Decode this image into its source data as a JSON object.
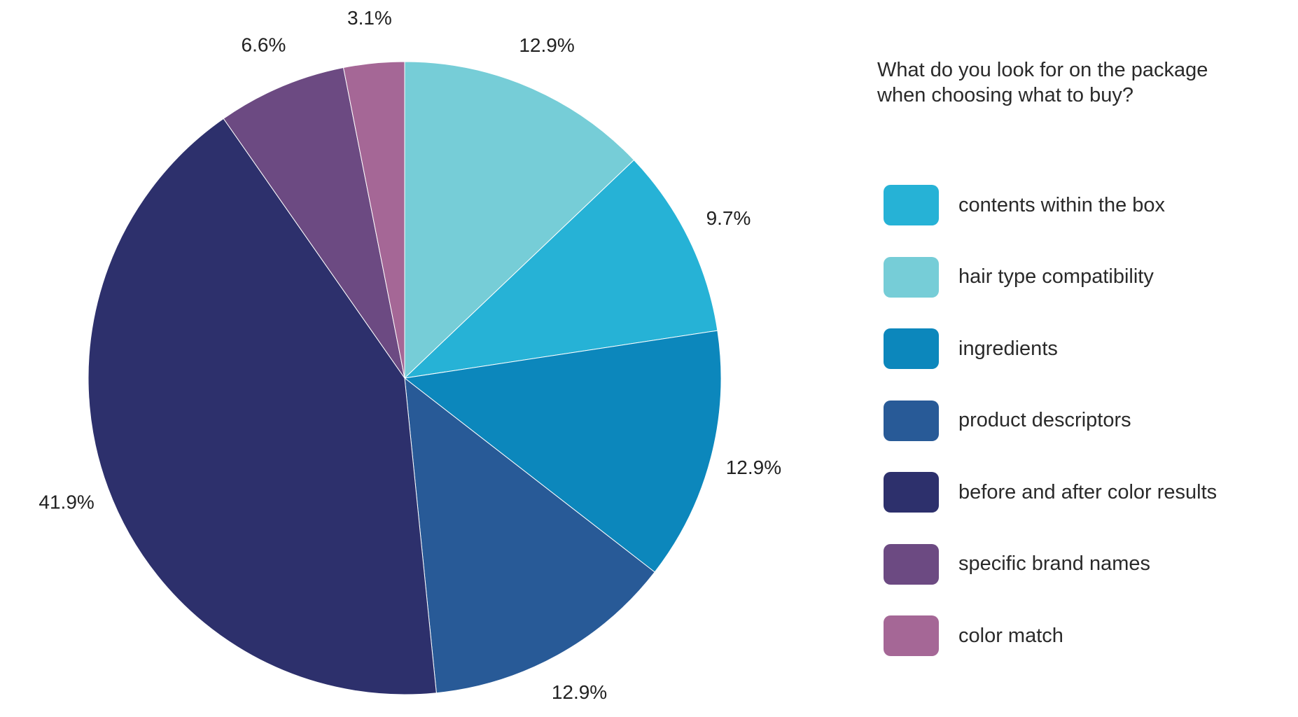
{
  "chart_data": {
    "type": "pie",
    "title": "What do you look for on the package when choosing what to buy?",
    "legend_position": "right",
    "slices": [
      {
        "label": "contents within the box",
        "value": 9.7,
        "display": "9.7%",
        "color": "#26B2D6"
      },
      {
        "label": "hair type compatibility",
        "value": 12.9,
        "display": "12.9%",
        "color": "#76CDD7"
      },
      {
        "label": "ingredients",
        "value": 12.9,
        "display": "12.9%",
        "color": "#0C87BC"
      },
      {
        "label": "product descriptors",
        "value": 12.9,
        "display": "12.9%",
        "color": "#285A97"
      },
      {
        "label": "before and after color results",
        "value": 41.9,
        "display": "41.9%",
        "color": "#2D306C"
      },
      {
        "label": "specific brand names",
        "value": 6.6,
        "display": "6.6%",
        "color": "#6C4A82"
      },
      {
        "label": "color match",
        "value": 3.1,
        "display": "3.1%",
        "color": "#A56796"
      }
    ],
    "draw_order_clockwise_from_top": [
      "hair type compatibility",
      "contents within the box",
      "ingredients",
      "product descriptors",
      "before and after color results",
      "specific brand names",
      "color match"
    ]
  }
}
